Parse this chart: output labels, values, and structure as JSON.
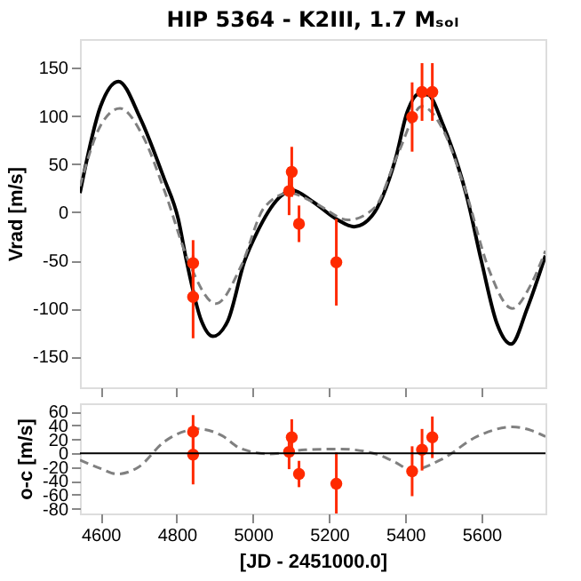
{
  "chart_data": [
    {
      "type": "line",
      "title": "HIP 5364 - K2III, 1.7 Mₛₒₗ",
      "ylabel": "Vrad [m/s]",
      "xlim": [
        4546,
        5768
      ],
      "xticks": [
        4600,
        4800,
        5000,
        5200,
        5400,
        5600
      ],
      "ylim": [
        -182,
        180
      ],
      "yticks": [
        -150,
        -100,
        -50,
        0,
        50,
        100,
        150
      ],
      "tick_labels": "y",
      "grid": false,
      "series": [
        {
          "color": "#000000",
          "line_style": "solid",
          "x": [
            4546,
            4600,
            4647,
            4704,
            4766,
            4804,
            4826,
            4865,
            4895,
            4934,
            4978,
            5012,
            5074,
            5102,
            5157,
            5219,
            5266,
            5312,
            5374,
            5405,
            5436,
            5460,
            5499,
            5561,
            5600,
            5640,
            5678,
            5720,
            5768
          ],
          "values": [
            20,
            110,
            136,
            98,
            36,
            -7,
            -51,
            -113,
            -129,
            -113,
            -51,
            -20,
            17,
            23,
            11,
            -7,
            -15,
            -4,
            55,
            104,
            123,
            122,
            91,
            17,
            -51,
            -115,
            -137,
            -100,
            -45
          ]
        },
        {
          "color": "#808080",
          "line_style": "dashed",
          "x": [
            4546,
            4600,
            4651,
            4710,
            4770,
            4830,
            4903,
            4970,
            5030,
            5095,
            5170,
            5250,
            5320,
            5380,
            5444,
            5500,
            5560,
            5620,
            5681,
            5730,
            5768
          ],
          "values": [
            27,
            90,
            108,
            80,
            20,
            -50,
            -95,
            -55,
            5,
            20,
            8,
            -8,
            5,
            60,
            110,
            85,
            20,
            -60,
            -100,
            -75,
            -40
          ]
        },
        {
          "type": "scatter",
          "color": "#ff2a00",
          "marker": "circle",
          "x": [
            4843,
            4843,
            5095,
            5102,
            5121,
            5219,
            5418,
            5444,
            5471
          ],
          "values": [
            -53,
            -88,
            22,
            42,
            -12,
            -52,
            99,
            125,
            125
          ],
          "errors": [
            24,
            43,
            25,
            26,
            19,
            45,
            36,
            30,
            30
          ]
        }
      ]
    },
    {
      "type": "line",
      "xlabel": "[JD - 2451000.0]",
      "ylabel": "o-c [m/s]",
      "xlim": [
        4546,
        5768
      ],
      "xticks": [
        4600,
        4800,
        5000,
        5200,
        5400,
        5600
      ],
      "ylim": [
        -87,
        72
      ],
      "yticks": [
        -80,
        -60,
        -40,
        -20,
        0,
        20,
        40,
        60
      ],
      "grid": false,
      "ref_lines": [
        {
          "axis": "y",
          "value": 0,
          "color": "#000000",
          "line_style": "solid"
        }
      ],
      "series": [
        {
          "color": "#808080",
          "line_style": "dashed",
          "x": [
            4546,
            4600,
            4643,
            4700,
            4766,
            4858,
            4920,
            4967,
            5043,
            5137,
            5230,
            5323,
            5370,
            5417,
            5495,
            5588,
            5681,
            5730,
            5768
          ],
          "values": [
            -10,
            -22,
            -30,
            -20,
            16,
            35,
            25,
            7,
            -1,
            5,
            6,
            -1,
            -12,
            -24,
            -9,
            24,
            38,
            33,
            24
          ]
        },
        {
          "type": "scatter",
          "color": "#ff2a00",
          "marker": "circle",
          "x": [
            4843,
            4843,
            5095,
            5102,
            5121,
            5219,
            5418,
            5444,
            5471
          ],
          "values": [
            31,
            -2,
            2,
            23,
            -30,
            -44,
            -26,
            5,
            23
          ],
          "errors": [
            24,
            43,
            25,
            26,
            19,
            45,
            36,
            30,
            30
          ]
        }
      ]
    }
  ]
}
